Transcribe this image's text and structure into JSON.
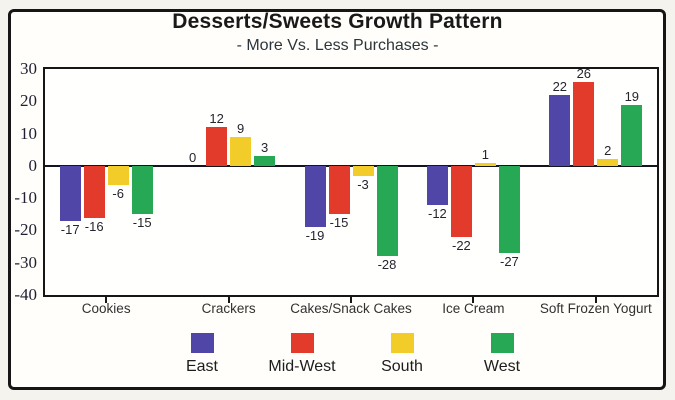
{
  "chart_data": {
    "type": "bar",
    "title": "Desserts/Sweets Growth Pattern",
    "subtitle": "- More Vs. Less Purchases -",
    "categories": [
      "Cookies",
      "Crackers",
      "Cakes/Snack Cakes",
      "Ice Cream",
      "Soft Frozen Yogurt"
    ],
    "series": [
      {
        "name": "East",
        "color": "#4f46a8",
        "values": [
          -17,
          0,
          -19,
          -12,
          22
        ]
      },
      {
        "name": "Mid-West",
        "color": "#e23b2b",
        "values": [
          -16,
          12,
          -15,
          -22,
          26
        ]
      },
      {
        "name": "South",
        "color": "#f2cc29",
        "values": [
          -6,
          9,
          -3,
          1,
          2
        ]
      },
      {
        "name": "West",
        "color": "#27a854",
        "values": [
          -15,
          3,
          -28,
          -27,
          19
        ]
      }
    ],
    "ylim": [
      -40,
      30
    ],
    "yticks": [
      30,
      20,
      10,
      0,
      -10,
      -20,
      -30,
      -40
    ],
    "grid": false,
    "legend_position": "bottom",
    "bar_value_labels": true,
    "colors": {
      "axis": "#161616",
      "frame": "#161616"
    }
  }
}
